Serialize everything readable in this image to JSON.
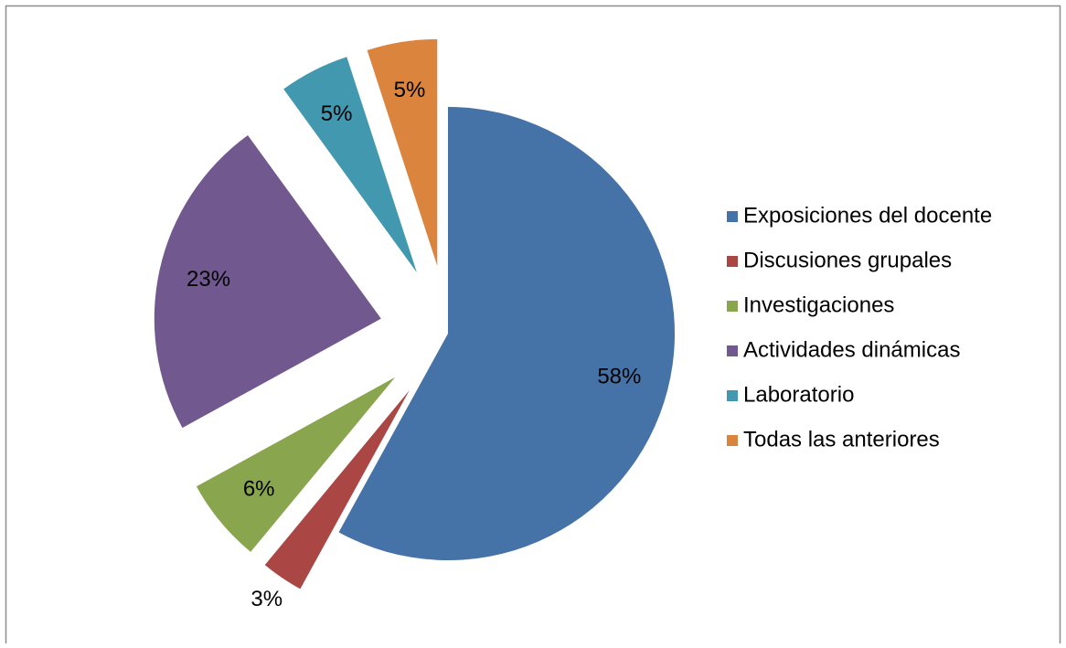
{
  "chart_data": {
    "type": "pie",
    "categories": [
      "Exposiciones del docente",
      "Discusiones grupales",
      "Investigaciones",
      "Actividades dinámicas",
      "Laboratorio",
      "Todas las anteriores"
    ],
    "values": [
      58,
      3,
      6,
      23,
      5,
      5
    ],
    "value_labels": [
      "58%",
      "3%",
      "6%",
      "23%",
      "5%",
      "5%"
    ],
    "colors": [
      "#4572a7",
      "#aa4643",
      "#89a54e",
      "#71588f",
      "#4198af",
      "#db843d"
    ],
    "legend": "right"
  }
}
